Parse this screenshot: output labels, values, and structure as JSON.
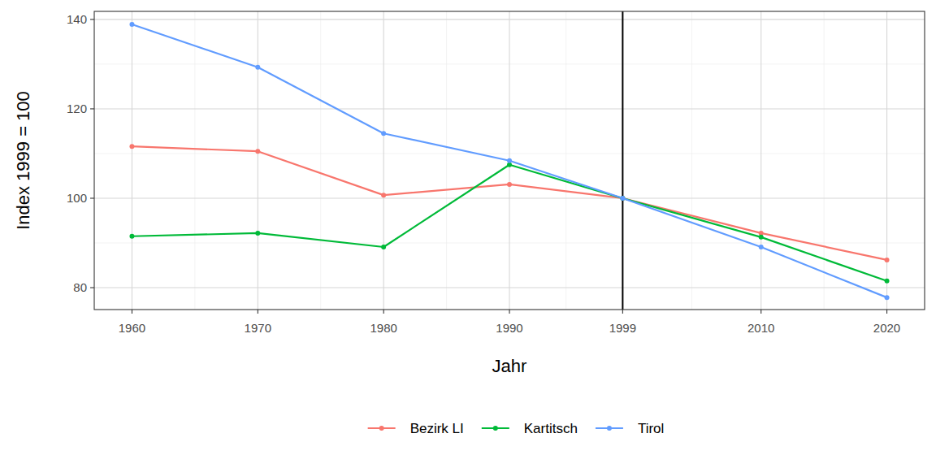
{
  "chart_data": {
    "type": "line",
    "x_label": "Jahr",
    "y_label": "Index 1999 = 100",
    "x": [
      1960,
      1970,
      1980,
      1990,
      1999,
      2010,
      2020
    ],
    "xlim": [
      1957,
      2023
    ],
    "xticks": [
      1960,
      1970,
      1980,
      1990,
      1999,
      2010,
      2020
    ],
    "ylim": [
      75.1,
      141.8
    ],
    "yticks": [
      80,
      100,
      120,
      140
    ],
    "vline": 1999,
    "grid": true,
    "legend": "bottom",
    "marker": "circle",
    "series": [
      {
        "name": "Bezirk LI",
        "color": "#F8766D",
        "values": [
          111.6,
          110.5,
          100.7,
          103.1,
          100,
          92.2,
          86.2
        ]
      },
      {
        "name": "Kartitsch",
        "color": "#00BA38",
        "values": [
          91.5,
          92.2,
          89.1,
          107.5,
          100,
          91.3,
          81.5
        ]
      },
      {
        "name": "Tirol",
        "color": "#619CFF",
        "values": [
          138.9,
          129.3,
          114.5,
          108.4,
          100,
          89.1,
          77.8
        ]
      }
    ]
  }
}
